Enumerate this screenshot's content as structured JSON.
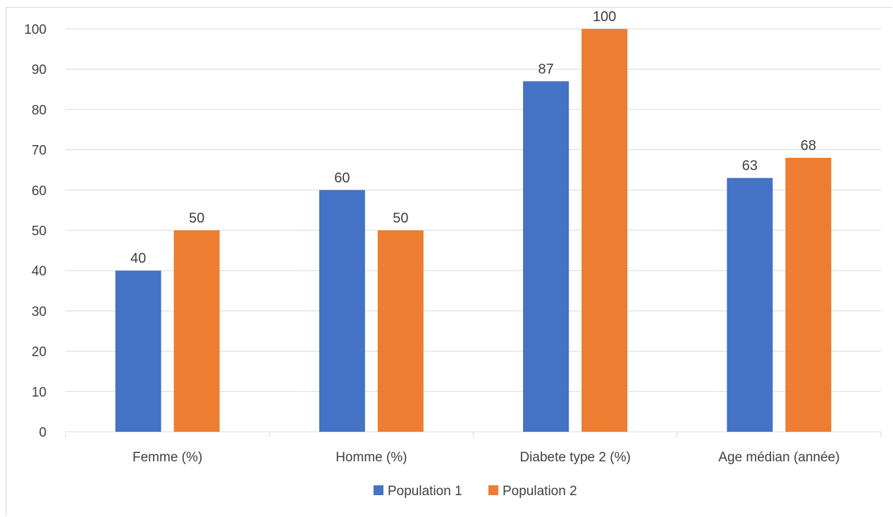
{
  "chart_data": {
    "type": "bar",
    "title": "",
    "xlabel": "",
    "ylabel": "",
    "categories": [
      "Femme (%)",
      "Homme (%)",
      "Diabete type 2 (%)",
      "Age médian (année)"
    ],
    "series": [
      {
        "name": "Population 1",
        "values": [
          40,
          60,
          87,
          63
        ],
        "color": "#4472C4"
      },
      {
        "name": "Population 2",
        "values": [
          50,
          50,
          100,
          68
        ],
        "color": "#ED7D31"
      }
    ],
    "ylim": [
      0,
      100
    ],
    "yticks": [
      "0",
      "10",
      "20",
      "30",
      "40",
      "50",
      "60",
      "70",
      "80",
      "90",
      "100"
    ],
    "grid": true,
    "data_labels": true,
    "legend_position": "bottom",
    "gridline_color": "#d9d9d9",
    "text_color": "#404040"
  }
}
